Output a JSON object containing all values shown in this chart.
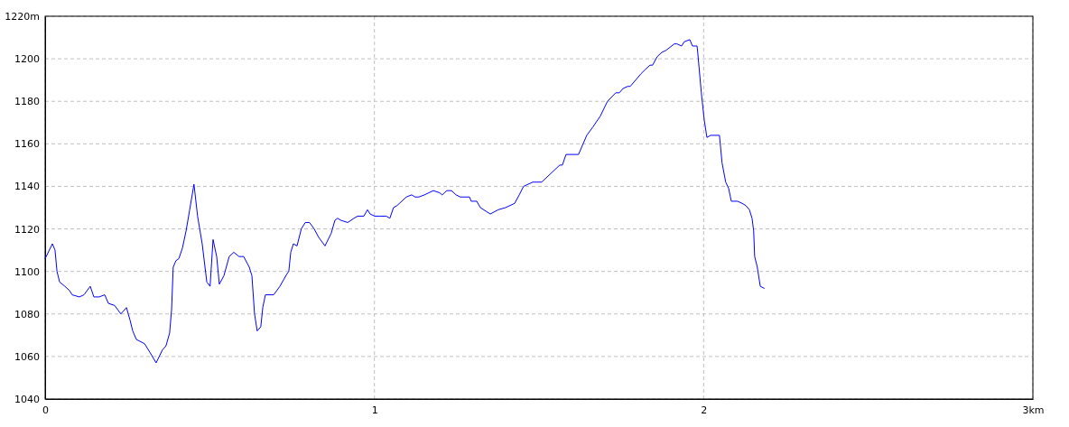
{
  "chart_data": {
    "type": "line",
    "xlim": [
      0,
      3
    ],
    "ylim": [
      1040,
      1220
    ],
    "xticks": [
      0,
      1,
      2,
      {
        "value": 3,
        "label": "3km"
      }
    ],
    "yticks": [
      1040,
      1060,
      1080,
      1100,
      1120,
      1140,
      1160,
      1180,
      1200,
      {
        "value": 1220,
        "label": "1220m"
      }
    ],
    "grid": true,
    "marker": "none",
    "line_style": "solid",
    "series": [
      {
        "color": "#0000ff",
        "x": [
          0,
          0.022,
          0.03,
          0.036,
          0.044,
          0.06,
          0.074,
          0.082,
          0.104,
          0.118,
          0.137,
          0.148,
          0.164,
          0.181,
          0.192,
          0.211,
          0.23,
          0.247,
          0.258,
          0.266,
          0.277,
          0.302,
          0.318,
          0.337,
          0.356,
          0.367,
          0.378,
          0.384,
          0.389,
          0.397,
          0.406,
          0.417,
          0.428,
          0.439,
          0.452,
          0.463,
          0.477,
          0.491,
          0.501,
          0.51,
          0.521,
          0.529,
          0.543,
          0.559,
          0.573,
          0.589,
          0.603,
          0.62,
          0.628,
          0.636,
          0.644,
          0.655,
          0.661,
          0.669,
          0.694,
          0.713,
          0.735,
          0.74,
          0.746,
          0.754,
          0.765,
          0.778,
          0.79,
          0.803,
          0.817,
          0.831,
          0.85,
          0.869,
          0.88,
          0.888,
          0.899,
          0.919,
          0.938,
          0.949,
          0.968,
          0.979,
          0.987,
          1.001,
          1.015,
          1.036,
          1.047,
          1.058,
          1.069,
          1.097,
          1.113,
          1.124,
          1.135,
          1.152,
          1.179,
          1.198,
          1.206,
          1.22,
          1.234,
          1.248,
          1.261,
          1.289,
          1.294,
          1.311,
          1.322,
          1.352,
          1.376,
          1.398,
          1.412,
          1.426,
          1.44,
          1.453,
          1.481,
          1.494,
          1.508,
          1.563,
          1.571,
          1.582,
          1.62,
          1.645,
          1.664,
          1.686,
          1.708,
          1.733,
          1.744,
          1.755,
          1.769,
          1.777,
          1.788,
          1.81,
          1.823,
          1.837,
          1.845,
          1.859,
          1.873,
          1.886,
          1.911,
          1.919,
          1.933,
          1.941,
          1.958,
          1.966,
          1.98,
          1.982,
          1.993,
          2.002,
          2.01,
          2.021,
          2.048,
          2.056,
          2.067,
          2.076,
          2.084,
          2.103,
          2.117,
          2.128,
          2.139,
          2.147,
          2.152,
          2.155,
          2.163,
          2.172,
          2.185
        ],
        "values": [
          1106,
          1113,
          1110,
          1100,
          1095,
          1093,
          1091,
          1089,
          1088,
          1089,
          1093,
          1088,
          1088,
          1089,
          1085,
          1084,
          1080,
          1083,
          1077,
          1072,
          1068,
          1066,
          1062,
          1057,
          1063,
          1065,
          1071,
          1082,
          1102,
          1105,
          1106,
          1111,
          1119,
          1129,
          1141,
          1126,
          1113,
          1095,
          1093,
          1115,
          1107,
          1094,
          1098,
          1107,
          1109,
          1107,
          1107,
          1102,
          1098,
          1080,
          1072,
          1074,
          1083,
          1089,
          1089,
          1093,
          1099,
          1100,
          1109,
          1113,
          1112,
          1120,
          1123,
          1123,
          1120,
          1116,
          1112,
          1118,
          1124,
          1125,
          1124,
          1123,
          1125,
          1126,
          1126,
          1129,
          1127,
          1126,
          1126,
          1126,
          1125,
          1130,
          1131,
          1135,
          1136,
          1135,
          1135,
          1136,
          1138,
          1137,
          1136,
          1138,
          1138,
          1136,
          1135,
          1135,
          1133,
          1133,
          1130,
          1127,
          1129,
          1130,
          1131,
          1132,
          1136,
          1140,
          1142,
          1142,
          1142,
          1150,
          1150,
          1155,
          1155,
          1164,
          1168,
          1173,
          1180,
          1184,
          1184,
          1186,
          1187,
          1187,
          1189,
          1193,
          1195,
          1197,
          1197,
          1201,
          1203,
          1204,
          1207,
          1207,
          1206,
          1208,
          1209,
          1206,
          1206,
          1203,
          1184,
          1171,
          1163,
          1164,
          1164,
          1151,
          1142,
          1139,
          1133,
          1133,
          1132,
          1131,
          1129,
          1125,
          1119,
          1107,
          1102,
          1093,
          1092
        ]
      }
    ]
  }
}
